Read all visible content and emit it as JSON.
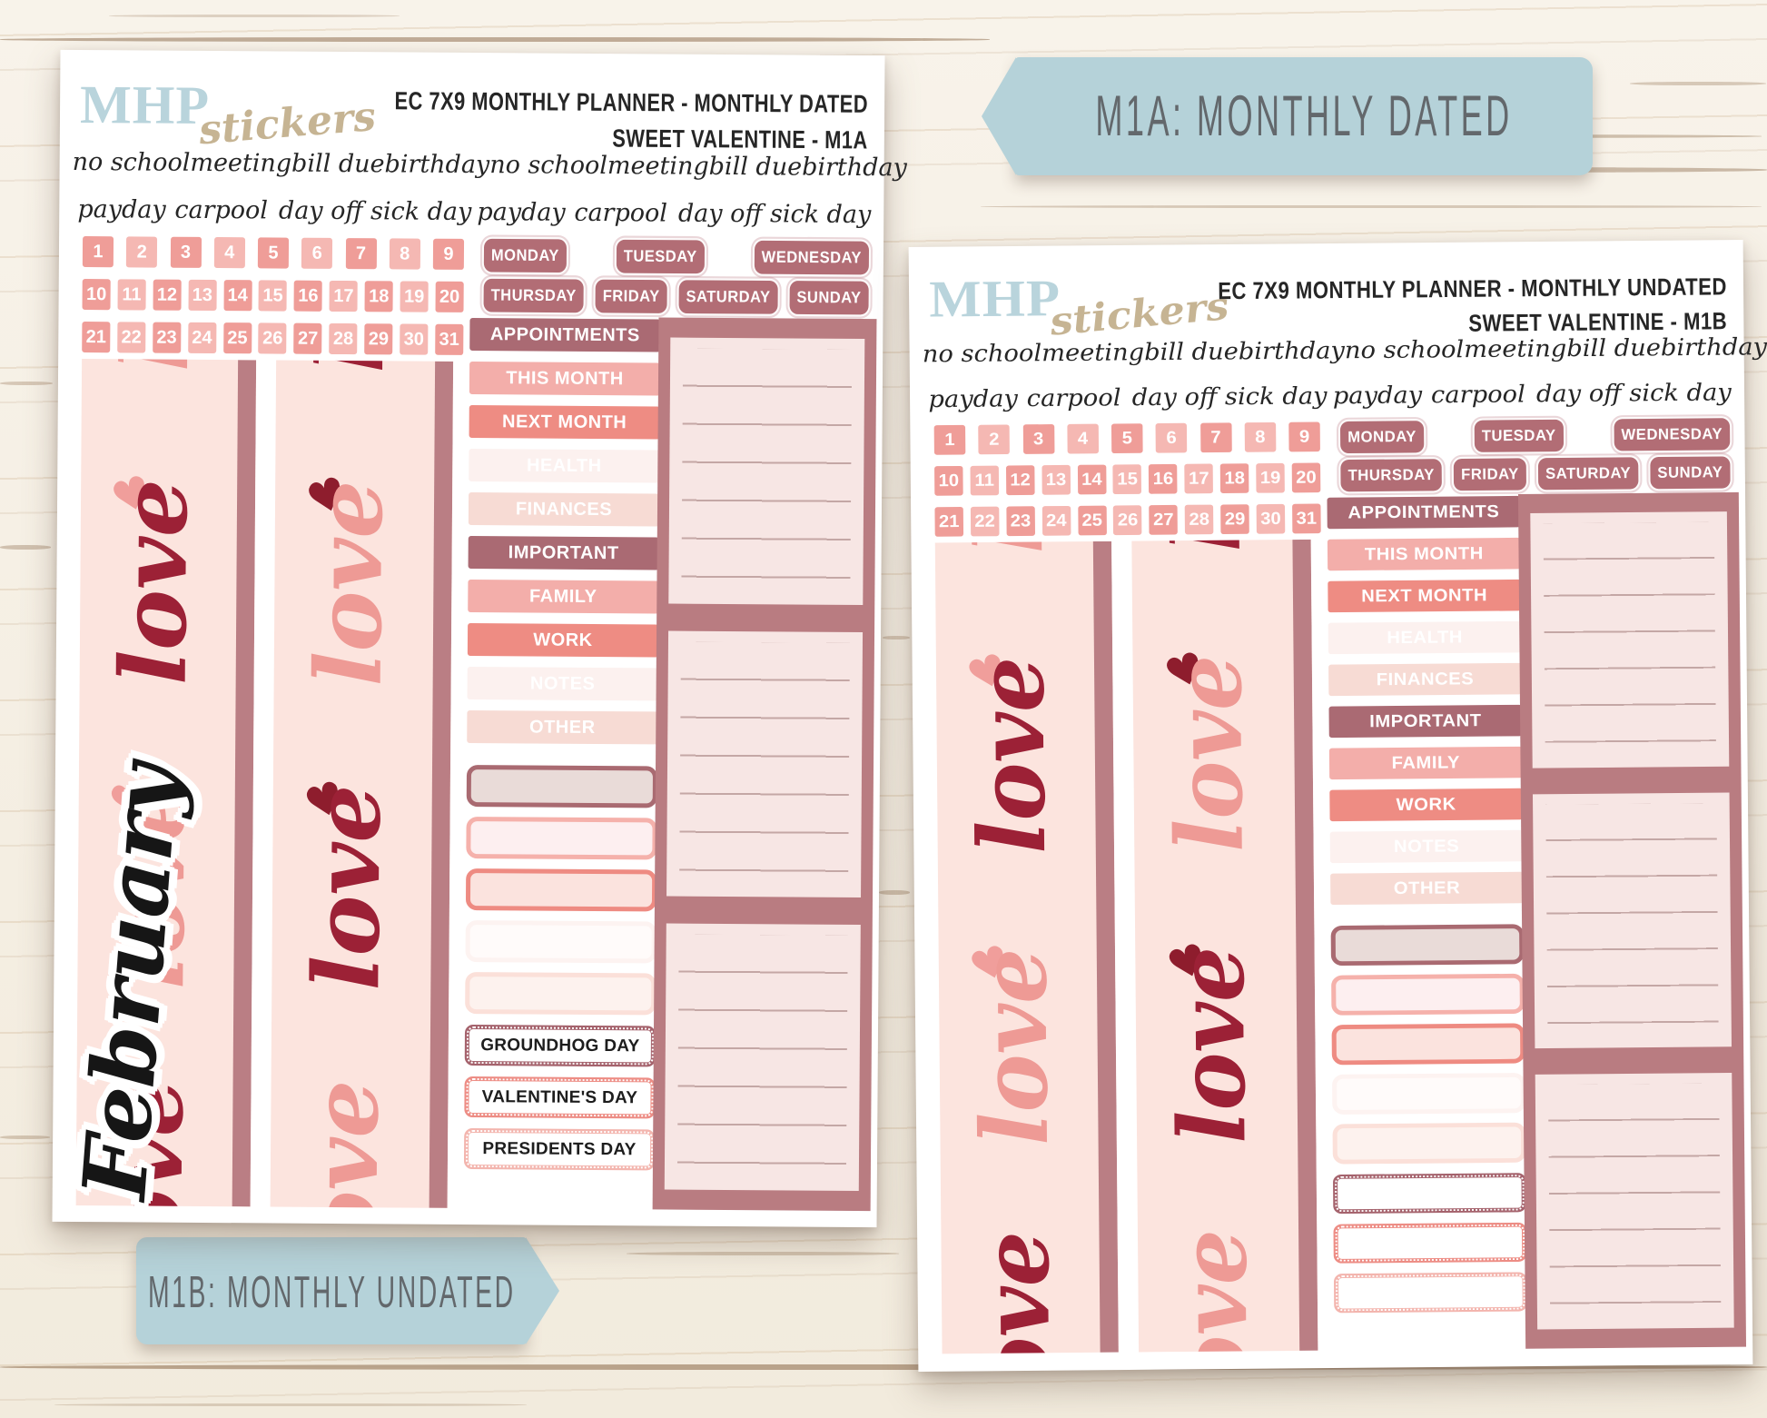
{
  "banner_top": {
    "label": "M1A: MONTHLY DATED"
  },
  "banner_bottom": {
    "label": "M1B: MONTHLY UNDATED"
  },
  "logo": {
    "name": "MHP",
    "suffix": "stickers"
  },
  "sheet_a": {
    "title_line1": "EC 7X9 MONTHLY PLANNER - MONTHLY DATED",
    "title_line2": "SWEET VALENTINE - M1A",
    "month_sticker": "February"
  },
  "sheet_b": {
    "title_line1": "EC 7X9 MONTHLY PLANNER - MONTHLY UNDATED",
    "title_line2": "SWEET VALENTINE - M1B"
  },
  "script_words": {
    "row1": [
      "no school",
      "meeting",
      "bill due",
      "birthday",
      "no school",
      "meeting",
      "bill due",
      "birthday"
    ],
    "row2": [
      "payday",
      "carpool",
      "day off",
      "sick day",
      "payday",
      "carpool",
      "day off",
      "sick day"
    ]
  },
  "dates": {
    "row1": [
      "1",
      "2",
      "3",
      "4",
      "5",
      "6",
      "7",
      "8",
      "9"
    ],
    "row2": [
      "10",
      "11",
      "12",
      "13",
      "14",
      "15",
      "16",
      "17",
      "18",
      "19",
      "20"
    ],
    "row3": [
      "21",
      "22",
      "23",
      "24",
      "25",
      "26",
      "27",
      "28",
      "29",
      "30",
      "31"
    ]
  },
  "weekdays": {
    "row1": [
      "MONDAY",
      "TUESDAY",
      "WEDNESDAY"
    ],
    "row2": [
      "THURSDAY",
      "FRIDAY",
      "SATURDAY",
      "SUNDAY"
    ]
  },
  "section_labels": [
    {
      "label": "APPOINTMENTS",
      "tone": "dark"
    },
    {
      "label": "THIS MONTH",
      "tone": "pink"
    },
    {
      "label": "NEXT MONTH",
      "tone": "salmon"
    },
    {
      "label": "HEALTH",
      "tone": "palest"
    },
    {
      "label": "FINANCES",
      "tone": "pale"
    },
    {
      "label": "IMPORTANT",
      "tone": "dark"
    },
    {
      "label": "FAMILY",
      "tone": "pink"
    },
    {
      "label": "WORK",
      "tone": "salmon"
    },
    {
      "label": "NOTES",
      "tone": "palest"
    },
    {
      "label": "OTHER",
      "tone": "pale"
    }
  ],
  "blank_slots": [
    {
      "tone": "dark"
    },
    {
      "tone": "pink"
    },
    {
      "tone": "salmon"
    },
    {
      "tone": "palest"
    },
    {
      "tone": "pale"
    }
  ],
  "holiday_boxes_a": [
    {
      "label": "GROUNDHOG DAY",
      "tone": "dark"
    },
    {
      "label": "VALENTINE'S DAY",
      "tone": "salmon"
    },
    {
      "label": "PRESIDENTS DAY",
      "tone": "pink"
    }
  ],
  "holiday_boxes_b": [
    {
      "label": "",
      "tone": "dark"
    },
    {
      "label": "",
      "tone": "salmon"
    },
    {
      "label": "",
      "tone": "pink"
    }
  ],
  "love_decor": {
    "col1": [
      {
        "glyph": "love",
        "tone": "pink"
      },
      {
        "glyph": "♥",
        "tone": "heart-pink"
      },
      {
        "glyph": "love",
        "tone": "red"
      },
      {
        "glyph": "♥",
        "tone": "heart-pink"
      },
      {
        "glyph": "love",
        "tone": "pink"
      },
      {
        "glyph": "love",
        "tone": "red"
      }
    ],
    "col2": [
      {
        "glyph": "love",
        "tone": "red"
      },
      {
        "glyph": "♥",
        "tone": "heart-red"
      },
      {
        "glyph": "love",
        "tone": "pink"
      },
      {
        "glyph": "♥",
        "tone": "heart-red"
      },
      {
        "glyph": "love",
        "tone": "red"
      },
      {
        "glyph": "love",
        "tone": "pink"
      }
    ]
  },
  "colors": {
    "banner_blue": "#b5d2d9",
    "banner_text": "#63686c",
    "logo_blue": "#b9d4dc",
    "logo_tan": "#c6b493",
    "rose_dark": "#aa6a73",
    "salmon": "#ee8c83",
    "pink_mid": "#f3aeaa",
    "pink_pale": "#f7dbd4",
    "pink_palest": "#fcf1ef",
    "date_square_dark": "#ef9d98",
    "date_square_light": "#f5b8b3",
    "panel_mauve": "#b97c81",
    "love_bg": "#fce4de",
    "love_red": "#9c2136",
    "love_pink": "#ee9a95",
    "heart_dark_red": "#8e1d2d"
  }
}
